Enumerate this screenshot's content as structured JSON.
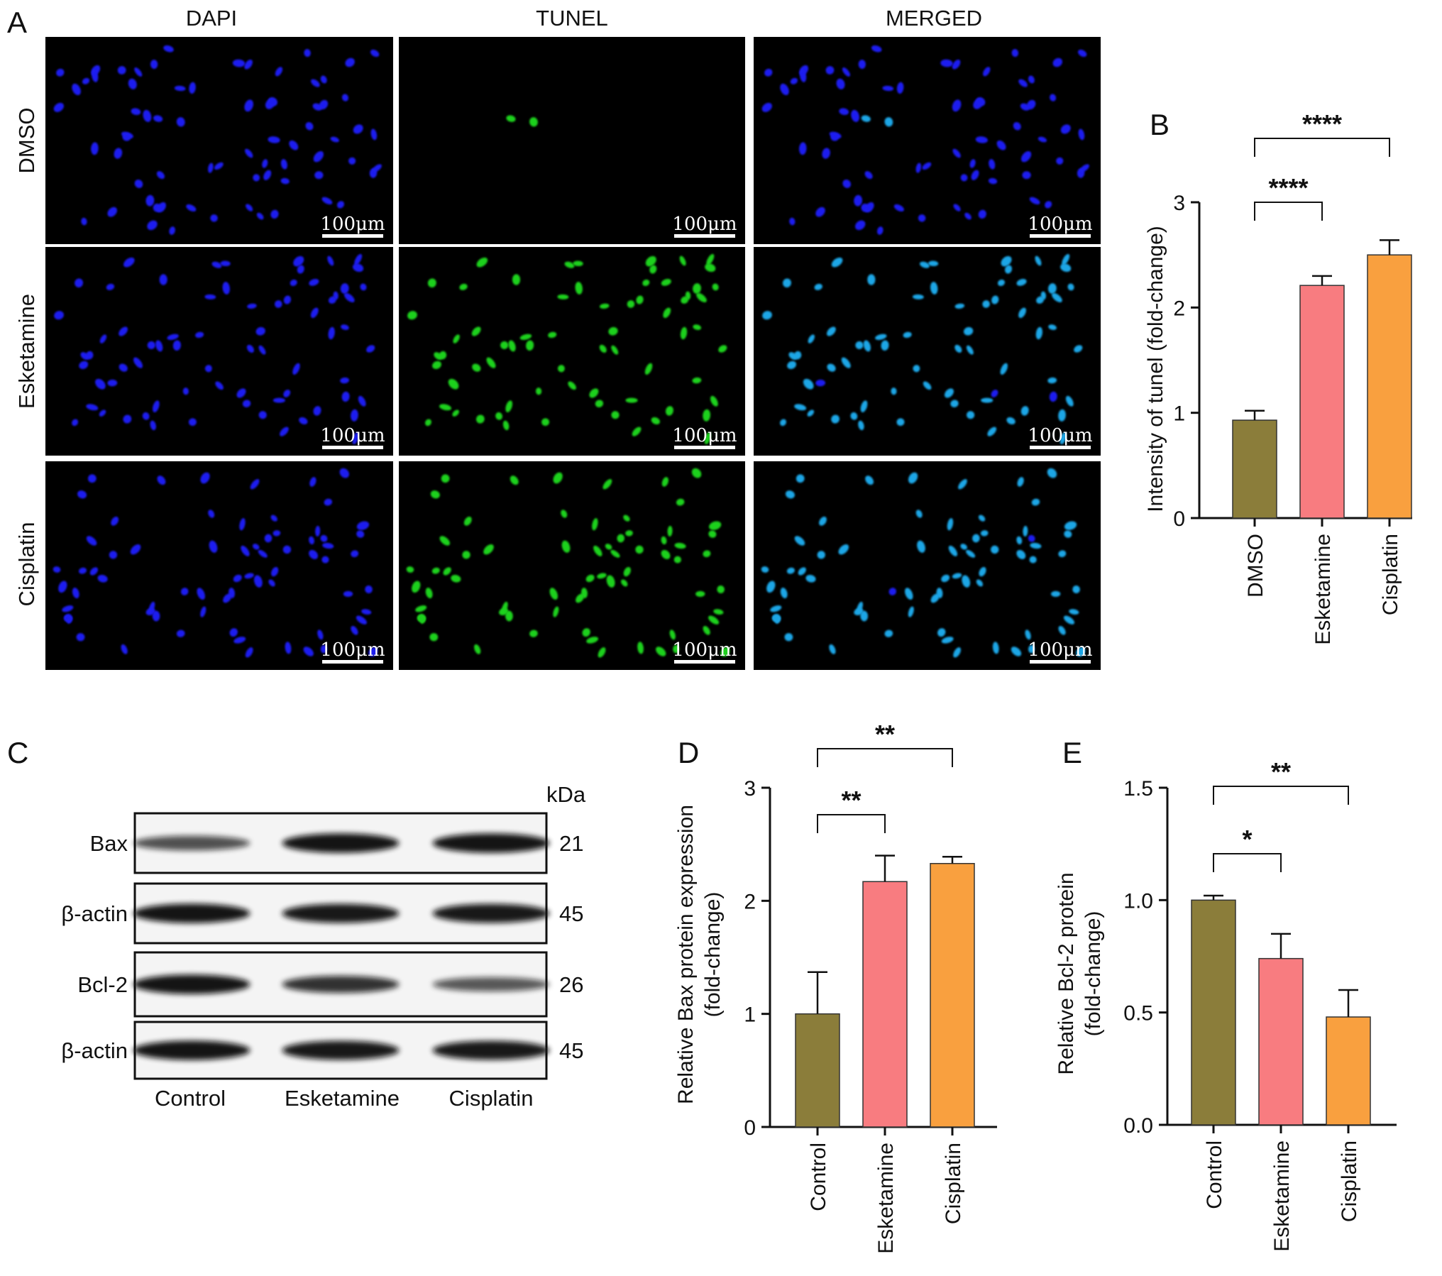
{
  "panel_labels": {
    "a": "A",
    "b": "B",
    "c": "C",
    "d": "D",
    "e": "E"
  },
  "microscopy": {
    "columns": [
      "DAPI",
      "TUNEL",
      "MERGED"
    ],
    "rows": [
      "DMSO",
      "Esketamine",
      "Cisplatin"
    ],
    "scale_bar": "100μm",
    "colors": {
      "dapi": "#1f1cf0",
      "tunel": "#1fd11f",
      "merged": "#1aa6e6"
    },
    "tunel_positive_level": [
      0.05,
      0.9,
      0.95
    ]
  },
  "western_blot": {
    "kda_label": "kDa",
    "bands": [
      {
        "name": "Bax",
        "kda": "21",
        "intensity": [
          0.55,
          0.95,
          0.95
        ]
      },
      {
        "name": "β-actin",
        "kda": "45",
        "intensity": [
          0.95,
          0.92,
          0.92
        ]
      },
      {
        "name": "Bcl-2",
        "kda": "26",
        "intensity": [
          0.95,
          0.75,
          0.5
        ]
      },
      {
        "name": "β-actin",
        "kda": "45",
        "intensity": [
          0.95,
          0.92,
          0.92
        ]
      }
    ],
    "lanes": [
      "Control",
      "Esketamine",
      "Cisplatin"
    ]
  },
  "chart_data": [
    {
      "type": "bar",
      "panel": "B",
      "categories": [
        "DMSO",
        "Esketamine",
        "Cisplatin"
      ],
      "values": [
        0.93,
        2.21,
        2.5
      ],
      "errors": [
        0.09,
        0.09,
        0.14
      ],
      "colors": [
        "#8b7d3a",
        "#f87c80",
        "#f9a03f"
      ],
      "ylabel": "Intensity of tunel (fold-change)",
      "ylim": [
        0,
        3
      ],
      "yticks": [
        "0",
        "1",
        "2",
        "3"
      ],
      "significance": [
        {
          "from": "DMSO",
          "to": "Esketamine",
          "label": "****"
        },
        {
          "from": "DMSO",
          "to": "Cisplatin",
          "label": "****"
        }
      ]
    },
    {
      "type": "bar",
      "panel": "D",
      "categories": [
        "Control",
        "Esketamine",
        "Cisplatin"
      ],
      "values": [
        1.0,
        2.17,
        2.33
      ],
      "errors": [
        0.37,
        0.23,
        0.06
      ],
      "colors": [
        "#8b7d3a",
        "#f87c80",
        "#f9a03f"
      ],
      "ylabel": [
        "Relative Bax protein expression",
        "(fold-change)"
      ],
      "ylim": [
        0,
        3
      ],
      "yticks": [
        "0",
        "1",
        "2",
        "3"
      ],
      "significance": [
        {
          "from": "Control",
          "to": "Esketamine",
          "label": "**"
        },
        {
          "from": "Control",
          "to": "Cisplatin",
          "label": "**"
        }
      ]
    },
    {
      "type": "bar",
      "panel": "E",
      "categories": [
        "Control",
        "Esketamine",
        "Cisplatin"
      ],
      "values": [
        1.0,
        0.74,
        0.48
      ],
      "errors": [
        0.02,
        0.11,
        0.12
      ],
      "colors": [
        "#8b7d3a",
        "#f87c80",
        "#f9a03f"
      ],
      "ylabel": [
        "Relative Bcl-2 protein",
        "(fold-change)"
      ],
      "ylim": [
        0,
        1.5
      ],
      "yticks": [
        "0.0",
        "0.5",
        "1.0",
        "1.5"
      ],
      "significance": [
        {
          "from": "Control",
          "to": "Esketamine",
          "label": "*"
        },
        {
          "from": "Control",
          "to": "Cisplatin",
          "label": "**"
        }
      ]
    }
  ]
}
